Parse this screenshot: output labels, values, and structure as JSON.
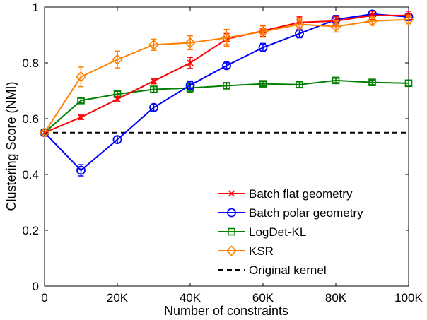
{
  "chart_data": {
    "type": "line",
    "title": "",
    "xlabel": "Number of constraints",
    "ylabel": "Clustering Score (NMI)",
    "xlim": [
      0,
      100000
    ],
    "ylim": [
      0,
      1
    ],
    "xticks": [
      0,
      20000,
      40000,
      60000,
      80000,
      100000
    ],
    "xtick_labels": [
      "0",
      "20K",
      "40K",
      "60K",
      "80K",
      "100K"
    ],
    "yticks": [
      0,
      0.2,
      0.4,
      0.6,
      0.8,
      1
    ],
    "ytick_labels": [
      "0",
      "0.2",
      "0.4",
      "0.6",
      "0.8",
      "1"
    ],
    "grid": false,
    "legend_position": "bottom-right",
    "x": [
      0,
      10000,
      20000,
      30000,
      40000,
      50000,
      60000,
      70000,
      80000,
      90000,
      100000
    ],
    "series": [
      {
        "name": "Batch flat geometry",
        "color": "#ff0000",
        "marker": "x",
        "values": [
          0.55,
          0.605,
          0.67,
          0.735,
          0.8,
          0.885,
          0.915,
          0.945,
          0.95,
          0.97,
          0.97
        ],
        "errors": [
          0,
          0.008,
          0.01,
          0.01,
          0.02,
          0.02,
          0.02,
          0.02,
          0.015,
          0.015,
          0.015
        ]
      },
      {
        "name": "Batch polar geometry",
        "color": "#0000ff",
        "marker": "o",
        "values": [
          0.55,
          0.415,
          0.525,
          0.64,
          0.72,
          0.79,
          0.855,
          0.905,
          0.955,
          0.975,
          0.965
        ],
        "errors": [
          0,
          0.02,
          0.012,
          0.012,
          0.015,
          0.01,
          0.015,
          0.015,
          0.015,
          0.012,
          0.012
        ]
      },
      {
        "name": "LogDet-KL",
        "color": "#008000",
        "marker": "s",
        "values": [
          0.55,
          0.665,
          0.688,
          0.705,
          0.71,
          0.718,
          0.725,
          0.722,
          0.737,
          0.73,
          0.727
        ],
        "errors": [
          0,
          0.008,
          0.01,
          0.01,
          0.015,
          0.01,
          0.008,
          0.01,
          0.008,
          0.008,
          0.01
        ]
      },
      {
        "name": "KSR",
        "color": "#ff8000",
        "marker": "d",
        "values": [
          0.55,
          0.75,
          0.812,
          0.865,
          0.872,
          0.89,
          0.912,
          0.938,
          0.93,
          0.95,
          0.955
        ],
        "errors": [
          0,
          0.035,
          0.03,
          0.02,
          0.025,
          0.03,
          0.02,
          0.02,
          0.02,
          0.015,
          0.015
        ]
      },
      {
        "name": "Original kernel",
        "color": "#000000",
        "marker": "none",
        "dashed": true,
        "values": [
          0.55,
          0.55,
          0.55,
          0.55,
          0.55,
          0.55,
          0.55,
          0.55,
          0.55,
          0.55,
          0.55
        ]
      }
    ]
  }
}
